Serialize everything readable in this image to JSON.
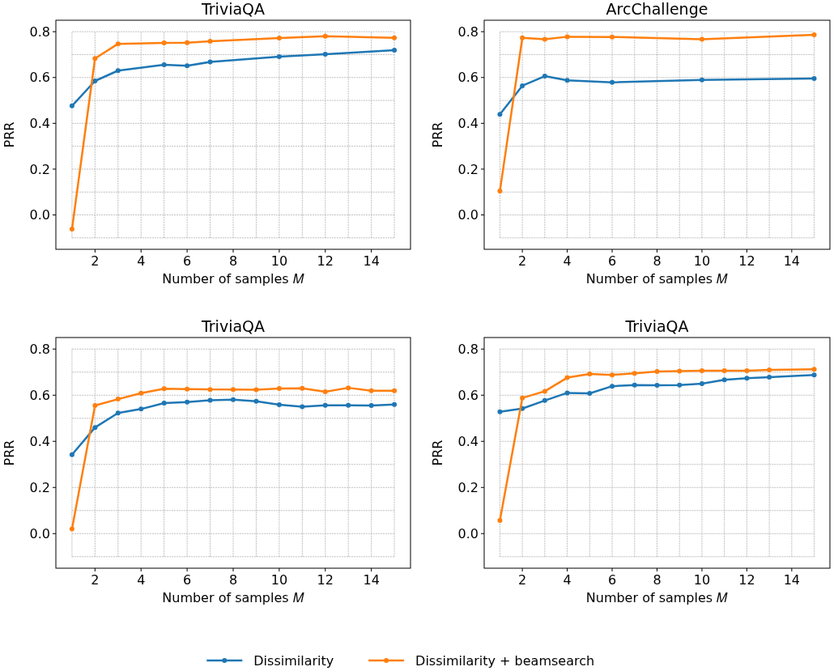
{
  "chart_data": [
    {
      "type": "line",
      "title": "TriviaQA",
      "xlabel": "Number of samples 𝑀",
      "ylabel": "PRR",
      "xlim": [
        0.3,
        15.7
      ],
      "ylim": [
        -0.15,
        0.85
      ],
      "xticks": [
        {
          "value": 1,
          "label": null
        },
        2,
        {
          "value": 3,
          "label": null
        },
        4,
        {
          "value": 5,
          "label": null
        },
        6,
        {
          "value": 7,
          "label": null
        },
        8,
        {
          "value": 9,
          "label": null
        },
        10,
        {
          "value": 11,
          "label": null
        },
        12,
        {
          "value": 13,
          "label": null
        },
        14,
        {
          "value": 15,
          "label": null
        }
      ],
      "yticks": [
        {
          "value": -0.1,
          "label": null
        },
        "0.0",
        {
          "value": 0.1,
          "label": null
        },
        0.2,
        {
          "value": 0.3,
          "label": null
        },
        0.4,
        {
          "value": 0.5,
          "label": null
        },
        0.6,
        {
          "value": 0.7,
          "label": null
        },
        0.8
      ],
      "grid": true,
      "marker": "circle",
      "legend": "bottom",
      "series": [
        {
          "name": "Dissimilarity",
          "color": "#1f77b4",
          "x": [
            1,
            2,
            3,
            5,
            6,
            7,
            10,
            12,
            15
          ],
          "values": [
            0.476,
            0.585,
            0.63,
            0.656,
            0.651,
            0.668,
            0.691,
            0.702,
            0.719
          ]
        },
        {
          "name": "Dissimilarity + beamsearch",
          "color": "#ff7f0e",
          "x": [
            1,
            2,
            3,
            5,
            6,
            7,
            10,
            12,
            15
          ],
          "values": [
            -0.062,
            0.683,
            0.747,
            0.751,
            0.752,
            0.758,
            0.772,
            0.78,
            0.773
          ]
        }
      ]
    },
    {
      "type": "line",
      "title": "ArcChallenge",
      "xlabel": "Number of samples 𝑀",
      "ylabel": "PRR",
      "xlim": [
        0.3,
        15.7
      ],
      "ylim": [
        -0.15,
        0.85
      ],
      "xticks": [
        {
          "value": 1,
          "label": null
        },
        2,
        {
          "value": 3,
          "label": null
        },
        4,
        {
          "value": 5,
          "label": null
        },
        6,
        {
          "value": 7,
          "label": null
        },
        8,
        {
          "value": 9,
          "label": null
        },
        10,
        {
          "value": 11,
          "label": null
        },
        12,
        {
          "value": 13,
          "label": null
        },
        14,
        {
          "value": 15,
          "label": null
        }
      ],
      "yticks": [
        {
          "value": -0.1,
          "label": null
        },
        "0.0",
        {
          "value": 0.1,
          "label": null
        },
        0.2,
        {
          "value": 0.3,
          "label": null
        },
        0.4,
        {
          "value": 0.5,
          "label": null
        },
        0.6,
        {
          "value": 0.7,
          "label": null
        },
        0.8
      ],
      "grid": true,
      "marker": "circle",
      "legend": "bottom",
      "series": [
        {
          "name": "Dissimilarity",
          "color": "#1f77b4",
          "x": [
            1,
            2,
            3,
            4,
            6,
            10,
            15
          ],
          "values": [
            0.439,
            0.564,
            0.606,
            0.588,
            0.579,
            0.589,
            0.596
          ]
        },
        {
          "name": "Dissimilarity + beamsearch",
          "color": "#ff7f0e",
          "x": [
            1,
            2,
            3,
            4,
            6,
            10,
            15
          ],
          "values": [
            0.104,
            0.773,
            0.767,
            0.778,
            0.777,
            0.767,
            0.786
          ]
        }
      ]
    },
    {
      "type": "line",
      "title": "TriviaQA",
      "xlabel": "Number of samples 𝑀",
      "ylabel": "PRR",
      "xlim": [
        0.3,
        15.7
      ],
      "ylim": [
        -0.15,
        0.85
      ],
      "xticks": [
        {
          "value": 1,
          "label": null
        },
        2,
        {
          "value": 3,
          "label": null
        },
        4,
        {
          "value": 5,
          "label": null
        },
        6,
        {
          "value": 7,
          "label": null
        },
        8,
        {
          "value": 9,
          "label": null
        },
        10,
        {
          "value": 11,
          "label": null
        },
        12,
        {
          "value": 13,
          "label": null
        },
        14,
        {
          "value": 15,
          "label": null
        }
      ],
      "yticks": [
        {
          "value": -0.1,
          "label": null
        },
        "0.0",
        {
          "value": 0.1,
          "label": null
        },
        0.2,
        {
          "value": 0.3,
          "label": null
        },
        0.4,
        {
          "value": 0.5,
          "label": null
        },
        0.6,
        {
          "value": 0.7,
          "label": null
        },
        0.8
      ],
      "grid": true,
      "marker": "circle",
      "legend": "bottom",
      "series": [
        {
          "name": "Dissimilarity",
          "color": "#1f77b4",
          "x": [
            1,
            2,
            3,
            4,
            5,
            6,
            7,
            8,
            9,
            10,
            11,
            12,
            13,
            14,
            15
          ],
          "values": [
            0.342,
            0.46,
            0.523,
            0.54,
            0.566,
            0.57,
            0.578,
            0.581,
            0.574,
            0.559,
            0.55,
            0.556,
            0.556,
            0.555,
            0.56
          ]
        },
        {
          "name": "Dissimilarity + beamsearch",
          "color": "#ff7f0e",
          "x": [
            1,
            2,
            3,
            4,
            5,
            6,
            7,
            8,
            9,
            10,
            11,
            12,
            13,
            14,
            15
          ],
          "values": [
            0.02,
            0.555,
            0.583,
            0.609,
            0.628,
            0.626,
            0.625,
            0.625,
            0.624,
            0.629,
            0.63,
            0.615,
            0.632,
            0.619,
            0.619
          ]
        }
      ]
    },
    {
      "type": "line",
      "title": "TriviaQA",
      "xlabel": "Number of samples 𝑀",
      "ylabel": "PRR",
      "xlim": [
        0.3,
        15.7
      ],
      "ylim": [
        -0.15,
        0.85
      ],
      "xticks": [
        {
          "value": 1,
          "label": null
        },
        2,
        {
          "value": 3,
          "label": null
        },
        4,
        {
          "value": 5,
          "label": null
        },
        6,
        {
          "value": 7,
          "label": null
        },
        8,
        {
          "value": 9,
          "label": null
        },
        10,
        {
          "value": 11,
          "label": null
        },
        12,
        {
          "value": 13,
          "label": null
        },
        14,
        {
          "value": 15,
          "label": null
        }
      ],
      "yticks": [
        {
          "value": -0.1,
          "label": null
        },
        "0.0",
        {
          "value": 0.1,
          "label": null
        },
        0.2,
        {
          "value": 0.3,
          "label": null
        },
        0.4,
        {
          "value": 0.5,
          "label": null
        },
        0.6,
        {
          "value": 0.7,
          "label": null
        },
        0.8
      ],
      "grid": true,
      "marker": "circle",
      "legend": "bottom",
      "series": [
        {
          "name": "Dissimilarity",
          "color": "#1f77b4",
          "x": [
            1,
            2,
            3,
            4,
            5,
            6,
            7,
            8,
            9,
            10,
            11,
            12,
            13,
            15
          ],
          "values": [
            0.528,
            0.542,
            0.577,
            0.61,
            0.608,
            0.639,
            0.644,
            0.643,
            0.644,
            0.65,
            0.667,
            0.674,
            0.678,
            0.688
          ]
        },
        {
          "name": "Dissimilarity + beamsearch",
          "color": "#ff7f0e",
          "x": [
            1,
            2,
            3,
            4,
            5,
            6,
            7,
            8,
            9,
            10,
            11,
            12,
            13,
            15
          ],
          "values": [
            0.057,
            0.588,
            0.617,
            0.676,
            0.692,
            0.688,
            0.695,
            0.703,
            0.704,
            0.706,
            0.706,
            0.706,
            0.71,
            0.712
          ]
        }
      ]
    }
  ]
}
